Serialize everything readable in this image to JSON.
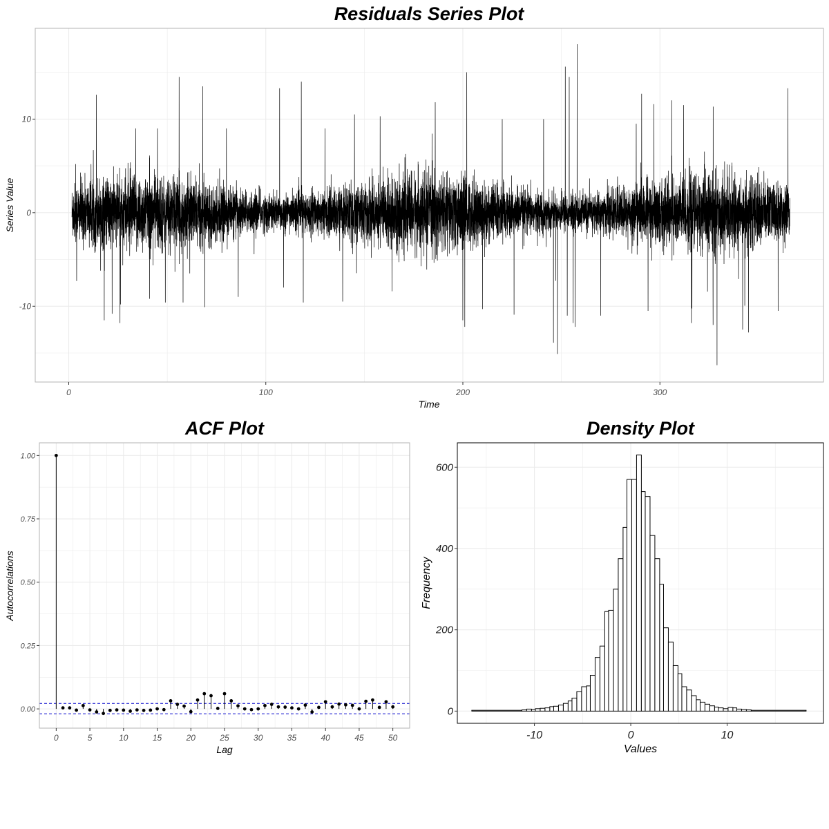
{
  "figure": {
    "background": "#ffffff",
    "grid_color": "#ebebeb",
    "border_color": "#b3b3b3"
  },
  "chart_data": [
    {
      "id": "residuals",
      "type": "line",
      "title": "Residuals Series Plot",
      "xlabel": "Time",
      "ylabel": "Series Value",
      "xlim": [
        -17,
        383
      ],
      "ylim": [
        -18.1,
        19.7
      ],
      "xticks": [
        0,
        100,
        200,
        300
      ],
      "yticks": [
        -10,
        0,
        10
      ],
      "xtick_labels": [
        "0",
        "100",
        "200",
        "300"
      ],
      "ytick_labels": [
        "-10",
        "0",
        "10"
      ],
      "grid": true,
      "line_color": "#000000",
      "x_range": [
        1.6,
        365.9
      ],
      "samples_per_time_unit": 24,
      "typical_band": [
        -3.5,
        3.5
      ],
      "spikes": [
        {
          "x": 3.5,
          "y": 5.2
        },
        {
          "x": 4,
          "y": -7.3
        },
        {
          "x": 14,
          "y": 12.6
        },
        {
          "x": 18,
          "y": -11.5
        },
        {
          "x": 22,
          "y": -10.8
        },
        {
          "x": 26,
          "y": -11.8
        },
        {
          "x": 34,
          "y": 9.0
        },
        {
          "x": 41,
          "y": -9.2
        },
        {
          "x": 45,
          "y": 9.0
        },
        {
          "x": 49,
          "y": -9.6
        },
        {
          "x": 56,
          "y": 14.5
        },
        {
          "x": 58,
          "y": -9.6
        },
        {
          "x": 68,
          "y": 13.5
        },
        {
          "x": 69,
          "y": -10.1
        },
        {
          "x": 80,
          "y": 9.0
        },
        {
          "x": 86,
          "y": -9.0
        },
        {
          "x": 107,
          "y": 13.3
        },
        {
          "x": 109,
          "y": -8.0
        },
        {
          "x": 118,
          "y": 14.0
        },
        {
          "x": 119,
          "y": -9.6
        },
        {
          "x": 130,
          "y": 9.0
        },
        {
          "x": 139,
          "y": -9.5
        },
        {
          "x": 145,
          "y": 10.5
        },
        {
          "x": 158,
          "y": 10.3
        },
        {
          "x": 164,
          "y": -8.4
        },
        {
          "x": 186,
          "y": 11.8
        },
        {
          "x": 200,
          "y": -11.5
        },
        {
          "x": 201,
          "y": -12.2
        },
        {
          "x": 202,
          "y": 15.0
        },
        {
          "x": 210,
          "y": -10.3
        },
        {
          "x": 220,
          "y": 10.0
        },
        {
          "x": 226,
          "y": -10.9
        },
        {
          "x": 241,
          "y": 10.0
        },
        {
          "x": 246,
          "y": -13.9
        },
        {
          "x": 248,
          "y": -15.1
        },
        {
          "x": 252,
          "y": 15.6
        },
        {
          "x": 253,
          "y": -11.0
        },
        {
          "x": 254,
          "y": 14.5
        },
        {
          "x": 256,
          "y": -11.8
        },
        {
          "x": 257,
          "y": -12.2
        },
        {
          "x": 258,
          "y": 18.0
        },
        {
          "x": 270,
          "y": -11.0
        },
        {
          "x": 288,
          "y": 9.5
        },
        {
          "x": 294,
          "y": -10.5
        },
        {
          "x": 297,
          "y": 11.6
        },
        {
          "x": 306,
          "y": 12.0
        },
        {
          "x": 312,
          "y": 11.5
        },
        {
          "x": 316,
          "y": -11.8
        },
        {
          "x": 327,
          "y": -12.0
        },
        {
          "x": 329,
          "y": -16.3
        },
        {
          "x": 342,
          "y": -12.5
        },
        {
          "x": 345,
          "y": -12.8
        },
        {
          "x": 360,
          "y": -10.5
        },
        {
          "x": 365,
          "y": 13.3
        }
      ]
    },
    {
      "id": "acf",
      "type": "scatter",
      "title": "ACF Plot",
      "xlabel": "Lag",
      "ylabel": "Autocorrelations",
      "xlim": [
        -2.5,
        52.5
      ],
      "ylim": [
        -0.076,
        1.05
      ],
      "xticks": [
        0,
        5,
        10,
        15,
        20,
        25,
        30,
        35,
        40,
        45,
        50
      ],
      "yticks": [
        0.0,
        0.25,
        0.5,
        0.75,
        1.0
      ],
      "xtick_labels": [
        "0",
        "5",
        "10",
        "15",
        "20",
        "25",
        "30",
        "35",
        "40",
        "45",
        "50"
      ],
      "ytick_labels": [
        "0.00",
        "0.25",
        "0.50",
        "0.75",
        "1.00"
      ],
      "grid": true,
      "confidence_bounds": [
        0.0215,
        -0.0195
      ],
      "bound_color": "#0000cc",
      "lags": [
        0,
        1,
        2,
        3,
        4,
        5,
        6,
        7,
        8,
        9,
        10,
        11,
        12,
        13,
        14,
        15,
        16,
        17,
        18,
        19,
        20,
        21,
        22,
        23,
        24,
        25,
        26,
        27,
        28,
        29,
        30,
        31,
        32,
        33,
        34,
        35,
        36,
        37,
        38,
        39,
        40,
        41,
        42,
        43,
        44,
        45,
        46,
        47,
        48,
        49,
        50
      ],
      "values": [
        1.0,
        0.004,
        0.004,
        -0.005,
        0.013,
        -0.004,
        -0.012,
        -0.018,
        -0.006,
        -0.004,
        -0.005,
        -0.009,
        -0.004,
        -0.006,
        -0.005,
        0.0,
        -0.003,
        0.032,
        0.018,
        0.011,
        -0.011,
        0.035,
        0.06,
        0.052,
        0.002,
        0.06,
        0.032,
        0.012,
        0.0,
        -0.003,
        0.0,
        0.013,
        0.018,
        0.008,
        0.007,
        0.004,
        0.0,
        0.015,
        -0.012,
        0.006,
        0.028,
        0.008,
        0.019,
        0.016,
        0.014,
        0.0,
        0.03,
        0.035,
        0.006,
        0.028,
        0.008
      ]
    },
    {
      "id": "density",
      "type": "bar",
      "title": "Density Plot",
      "xlabel": "Values",
      "ylabel": "Frequency",
      "xlim": [
        -18.0,
        20.0
      ],
      "ylim": [
        -30,
        660
      ],
      "xticks": [
        -10,
        0,
        10
      ],
      "yticks": [
        0,
        200,
        400,
        600
      ],
      "xtick_labels": [
        "-10",
        "0",
        "10"
      ],
      "ytick_labels": [
        "0",
        "200",
        "400",
        "600"
      ],
      "grid": true,
      "bar_fill": "#ffffff",
      "bar_stroke": "#000000",
      "bins": [
        {
          "x0": -16.5,
          "x1": -11.3,
          "count": 2
        },
        {
          "x0": -11.3,
          "x1": -10.8,
          "count": 3
        },
        {
          "x0": -10.8,
          "x1": -10.3,
          "count": 5
        },
        {
          "x0": -10.3,
          "x1": -9.9,
          "count": 4
        },
        {
          "x0": -9.9,
          "x1": -9.4,
          "count": 6
        },
        {
          "x0": -9.4,
          "x1": -8.9,
          "count": 7
        },
        {
          "x0": -8.9,
          "x1": -8.4,
          "count": 8
        },
        {
          "x0": -8.4,
          "x1": -8.0,
          "count": 11
        },
        {
          "x0": -8.0,
          "x1": -7.5,
          "count": 12
        },
        {
          "x0": -7.5,
          "x1": -7.0,
          "count": 15
        },
        {
          "x0": -7.0,
          "x1": -6.5,
          "count": 19
        },
        {
          "x0": -6.5,
          "x1": -6.1,
          "count": 25
        },
        {
          "x0": -6.1,
          "x1": -5.6,
          "count": 32
        },
        {
          "x0": -5.6,
          "x1": -5.1,
          "count": 48
        },
        {
          "x0": -5.1,
          "x1": -4.6,
          "count": 60
        },
        {
          "x0": -4.6,
          "x1": -4.2,
          "count": 62
        },
        {
          "x0": -4.2,
          "x1": -3.7,
          "count": 88
        },
        {
          "x0": -3.7,
          "x1": -3.2,
          "count": 132
        },
        {
          "x0": -3.2,
          "x1": -2.7,
          "count": 160
        },
        {
          "x0": -2.7,
          "x1": -2.3,
          "count": 245
        },
        {
          "x0": -2.3,
          "x1": -1.8,
          "count": 248
        },
        {
          "x0": -1.8,
          "x1": -1.3,
          "count": 300
        },
        {
          "x0": -1.3,
          "x1": -0.8,
          "count": 375
        },
        {
          "x0": -0.8,
          "x1": -0.4,
          "count": 452
        },
        {
          "x0": -0.4,
          "x1": 0.1,
          "count": 570
        },
        {
          "x0": 0.1,
          "x1": 0.6,
          "count": 570
        },
        {
          "x0": 0.6,
          "x1": 1.1,
          "count": 630
        },
        {
          "x0": 1.1,
          "x1": 1.5,
          "count": 540
        },
        {
          "x0": 1.5,
          "x1": 2.0,
          "count": 528
        },
        {
          "x0": 2.0,
          "x1": 2.5,
          "count": 432
        },
        {
          "x0": 2.5,
          "x1": 3.0,
          "count": 375
        },
        {
          "x0": 3.0,
          "x1": 3.4,
          "count": 312
        },
        {
          "x0": 3.4,
          "x1": 3.9,
          "count": 205
        },
        {
          "x0": 3.9,
          "x1": 4.4,
          "count": 170
        },
        {
          "x0": 4.4,
          "x1": 4.9,
          "count": 112
        },
        {
          "x0": 4.9,
          "x1": 5.3,
          "count": 92
        },
        {
          "x0": 5.3,
          "x1": 5.8,
          "count": 60
        },
        {
          "x0": 5.8,
          "x1": 6.3,
          "count": 52
        },
        {
          "x0": 6.3,
          "x1": 6.8,
          "count": 38
        },
        {
          "x0": 6.8,
          "x1": 7.2,
          "count": 28
        },
        {
          "x0": 7.2,
          "x1": 7.7,
          "count": 22
        },
        {
          "x0": 7.7,
          "x1": 8.2,
          "count": 17
        },
        {
          "x0": 8.2,
          "x1": 8.7,
          "count": 13
        },
        {
          "x0": 8.7,
          "x1": 9.1,
          "count": 10
        },
        {
          "x0": 9.1,
          "x1": 9.6,
          "count": 8
        },
        {
          "x0": 9.6,
          "x1": 10.1,
          "count": 6
        },
        {
          "x0": 10.1,
          "x1": 10.6,
          "count": 9
        },
        {
          "x0": 10.6,
          "x1": 11.0,
          "count": 8
        },
        {
          "x0": 11.0,
          "x1": 11.5,
          "count": 5
        },
        {
          "x0": 11.5,
          "x1": 12.0,
          "count": 4
        },
        {
          "x0": 12.0,
          "x1": 12.5,
          "count": 3
        },
        {
          "x0": 12.5,
          "x1": 18.2,
          "count": 2
        }
      ]
    }
  ]
}
